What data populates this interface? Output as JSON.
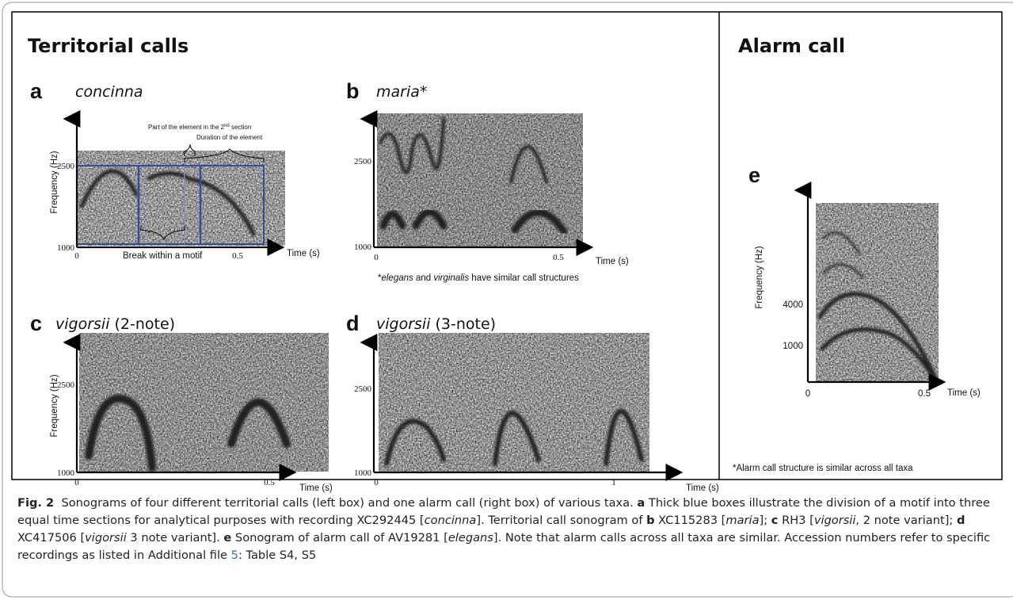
{
  "figure": {
    "left_title": "Territorial calls",
    "right_title": "Alarm call",
    "panels": [
      {
        "letter": "a",
        "name": "concinna",
        "ylabel": "Frequency (Hz)",
        "yticks": [
          "2500",
          "1000"
        ],
        "xticks": [
          "0",
          "0.5"
        ],
        "xlabel": "Time (s)",
        "annotations": {
          "part": [
            "Part of the element in the 2",
            "nd",
            " section"
          ],
          "duration": "Duration of the element",
          "break": "Break within a motif"
        }
      },
      {
        "letter": "b",
        "name": "maria*",
        "yticks": [
          "2500",
          "1000"
        ],
        "xticks": [
          "0",
          "0.5"
        ],
        "xlabel": "Time (s)",
        "note": [
          "*",
          "elegans",
          " and ",
          "virginalis",
          " have similar call structures"
        ]
      },
      {
        "letter": "c",
        "name": "vigorsii",
        "variant": " (2-note)",
        "ylabel": "Frequency (Hz)",
        "yticks": [
          "2500",
          "1000"
        ],
        "xticks": [
          "0",
          "0.5"
        ],
        "xlabel": "Time (s)"
      },
      {
        "letter": "d",
        "name": "vigorsii",
        "variant": " (3-note)",
        "yticks": [
          "2500",
          "1000"
        ],
        "xticks": [
          "0",
          "1"
        ],
        "xlabel": "Time (s)"
      },
      {
        "letter": "e",
        "ylabel": "Frequency (Hz)",
        "yticks": [
          "4000",
          "1000"
        ],
        "xticks": [
          "0",
          "0.5"
        ],
        "xlabel": "Time (s)",
        "note": "*Alarm call structure is similar across all taxa"
      }
    ]
  },
  "caption": {
    "runs": [
      "Fig. 2",
      "  Sonograms of four different territorial calls (left box) and one alarm call (right box) of various taxa. ",
      "a",
      " Thick blue boxes illustrate the division of a motif into three equal time sections for analytical purposes with recording XC292445 [",
      "concinna",
      "]. Territorial call sonogram of ",
      "b",
      " XC115283 [",
      "maria",
      "]; ",
      "c",
      " RH3 [",
      "vigorsii",
      ", 2 note variant]; ",
      "d",
      " XC417506 [",
      "vigorsii",
      " 3 note variant]. ",
      "e",
      " Sonogram of alarm call of AV19281 [",
      "elegans",
      "]. Note that alarm calls across all taxa are similar. Accession numbers refer to specific recordings as listed in Additional file ",
      "5",
      ": Table S4, S5"
    ]
  }
}
